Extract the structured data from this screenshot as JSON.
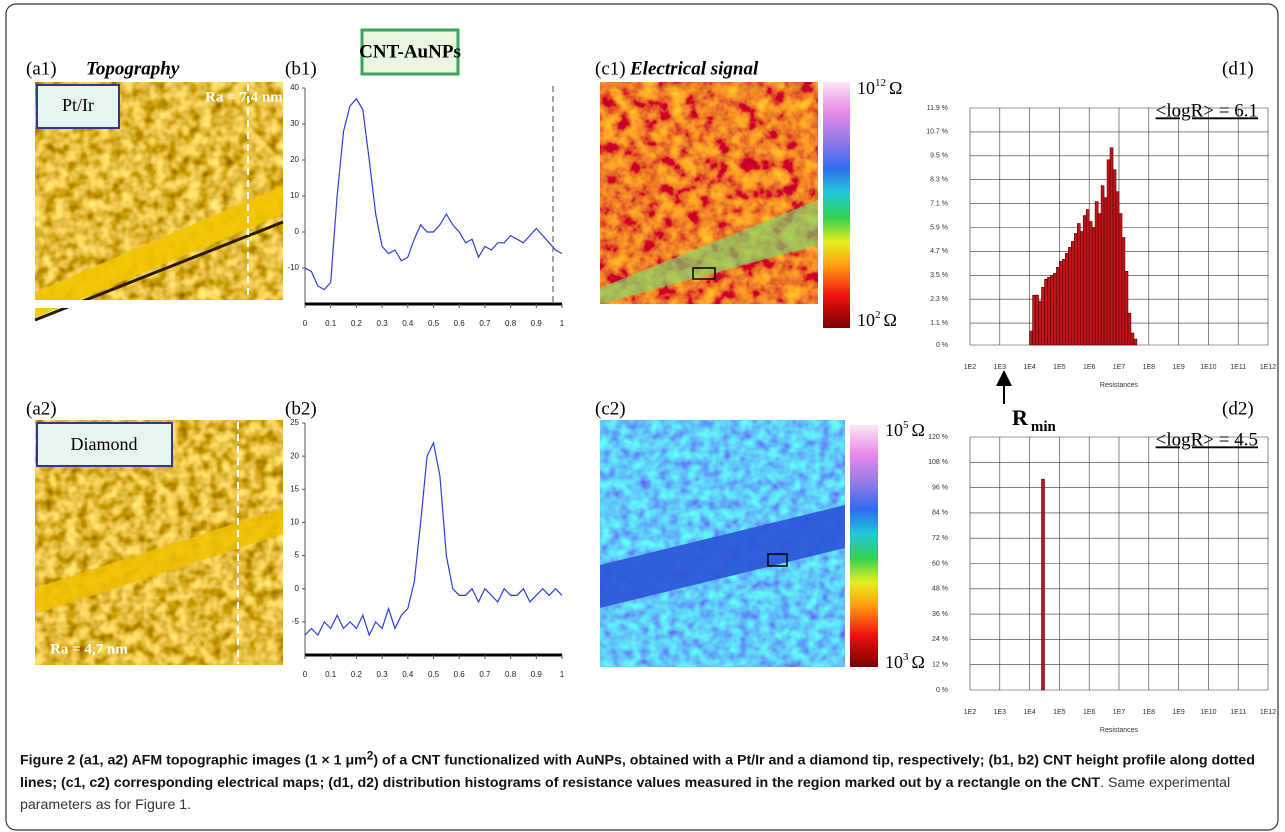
{
  "banner": "CNT-AuNPs",
  "panels": {
    "a1": {
      "label": "(a1)",
      "title": "Topography",
      "tip": "Pt/Ir",
      "ra": "Ra = 7,4 nm"
    },
    "b1": {
      "label": "(b1)"
    },
    "c1": {
      "label": "(c1)",
      "title": "Electrical signal",
      "scale_top": {
        "base": "10",
        "exp": "12",
        "unit": "Ω"
      },
      "scale_bottom": {
        "base": "10",
        "exp": "2",
        "unit": "Ω"
      }
    },
    "d1": {
      "label": "(d1)"
    },
    "a2": {
      "label": "(a2)",
      "tip": "Diamond",
      "ra": "Ra = 4,7 nm"
    },
    "b2": {
      "label": "(b2)"
    },
    "c2": {
      "label": "(c2)",
      "scale_top": {
        "base": "10",
        "exp": "5",
        "unit": "Ω"
      },
      "scale_bottom": {
        "base": "10",
        "exp": "3",
        "unit": "Ω"
      }
    },
    "d2": {
      "label": "(d2)"
    }
  },
  "rmin": {
    "main": "R",
    "sub": "min"
  },
  "chart_data": [
    {
      "type": "line",
      "color": "#2b3fd6",
      "x": [
        0,
        0.025,
        0.05,
        0.075,
        0.1,
        0.125,
        0.15,
        0.175,
        0.2,
        0.225,
        0.25,
        0.275,
        0.3,
        0.325,
        0.35,
        0.375,
        0.4,
        0.425,
        0.45,
        0.475,
        0.5,
        0.525,
        0.55,
        0.575,
        0.6,
        0.625,
        0.65,
        0.675,
        0.7,
        0.725,
        0.75,
        0.775,
        0.8,
        0.825,
        0.85,
        0.875,
        0.9,
        0.925,
        0.95,
        0.975,
        1
      ],
      "values": [
        -10,
        -11,
        -15,
        -16,
        -14,
        10,
        28,
        35,
        37,
        34,
        20,
        5,
        -4,
        -6,
        -5,
        -8,
        -7,
        -2,
        2,
        0,
        0,
        2,
        5,
        2,
        0,
        -3,
        -2,
        -7,
        -4,
        -5,
        -3,
        -3,
        -1,
        -2,
        -3,
        -1,
        1,
        -1,
        -3,
        -5,
        -6
      ],
      "xlim": [
        0,
        1
      ],
      "xticks": [
        0,
        0.1,
        0.2,
        0.3,
        0.4,
        0.5,
        0.6,
        0.7,
        0.8,
        0.9,
        1
      ],
      "ylim": [
        -20,
        40
      ],
      "yticks": [
        -10,
        0,
        10,
        20,
        30,
        40
      ]
    },
    {
      "type": "line",
      "color": "#2b3fd6",
      "x": [
        0,
        0.025,
        0.05,
        0.075,
        0.1,
        0.125,
        0.15,
        0.175,
        0.2,
        0.225,
        0.25,
        0.275,
        0.3,
        0.325,
        0.35,
        0.375,
        0.4,
        0.425,
        0.45,
        0.475,
        0.5,
        0.525,
        0.55,
        0.575,
        0.6,
        0.625,
        0.65,
        0.675,
        0.7,
        0.725,
        0.75,
        0.775,
        0.8,
        0.825,
        0.85,
        0.875,
        0.9,
        0.925,
        0.95,
        0.975,
        1
      ],
      "values": [
        -7,
        -6,
        -7,
        -5,
        -6,
        -4,
        -6,
        -5,
        -6,
        -4,
        -7,
        -5,
        -6,
        -3,
        -6,
        -4,
        -3,
        1,
        10,
        20,
        22,
        17,
        5,
        0,
        -1,
        -1,
        0,
        -2,
        0,
        -1,
        -2,
        0,
        -1,
        -1,
        0,
        -2,
        -1,
        0,
        -1,
        0,
        -1
      ],
      "xlim": [
        0,
        1
      ],
      "xticks": [
        0,
        0.1,
        0.2,
        0.3,
        0.4,
        0.5,
        0.6,
        0.7,
        0.8,
        0.9,
        1
      ],
      "ylim": [
        -10,
        25
      ],
      "yticks": [
        -5,
        0,
        5,
        10,
        15,
        20,
        25
      ]
    },
    {
      "type": "histogram",
      "color": "#c0161b",
      "log_x": true,
      "grid": true,
      "x_label": "Resistances",
      "annotation": "<logR> = 6.1",
      "bins": [
        10000,
        12600,
        15800,
        20000,
        25100,
        31600,
        39800,
        50100,
        63100,
        79400,
        100000,
        126000,
        158000,
        200000,
        251000,
        316000,
        398000,
        501000,
        631000,
        794000,
        1000000,
        1260000,
        1580000,
        2000000,
        2510000,
        3160000,
        3980000,
        5010000,
        6310000,
        7940000,
        10000000,
        12600000,
        15800000,
        20000000,
        25100000,
        31600000,
        39800000
      ],
      "values": [
        0.7,
        2.5,
        2.5,
        2.2,
        2.9,
        3.3,
        3.4,
        3.5,
        3.6,
        3.9,
        4.2,
        4.3,
        4.6,
        4.9,
        5.2,
        5.6,
        6.1,
        5.7,
        6.5,
        6.8,
        6.2,
        5.9,
        7.2,
        6.6,
        8.0,
        7.4,
        9.3,
        9.9,
        8.8,
        7.7,
        6.6,
        5.4,
        3.7,
        1.6,
        0.6,
        0.3
      ],
      "xlim": [
        100,
        1000000000000
      ],
      "xticks": [
        {
          "value": 100,
          "label": "1E2"
        },
        {
          "value": 1000,
          "label": "1E3"
        },
        {
          "value": 10000,
          "label": "1E4"
        },
        {
          "value": 100000,
          "label": "1E5"
        },
        {
          "value": 1000000,
          "label": "1E6"
        },
        {
          "value": 10000000,
          "label": "1E7"
        },
        {
          "value": 100000000,
          "label": "1E8"
        },
        {
          "value": 1000000000,
          "label": "1E9"
        },
        {
          "value": 10000000000,
          "label": "1E10"
        },
        {
          "value": 100000000000,
          "label": "1E11"
        },
        {
          "value": 1000000000000,
          "label": "1E12"
        }
      ],
      "ylim": [
        0,
        11.9
      ],
      "yticks": [
        {
          "value": 0,
          "label": "0 %"
        },
        {
          "value": 1.1,
          "label": "1.1 %"
        },
        {
          "value": 2.3,
          "label": "2.3 %"
        },
        {
          "value": 3.5,
          "label": "3.5 %"
        },
        {
          "value": 4.7,
          "label": "4.7 %"
        },
        {
          "value": 5.9,
          "label": "5.9 %"
        },
        {
          "value": 7.1,
          "label": "7.1 %"
        },
        {
          "value": 8.3,
          "label": "8.3 %"
        },
        {
          "value": 9.5,
          "label": "9.5 %"
        },
        {
          "value": 10.7,
          "label": "10.7 %"
        },
        {
          "value": 11.9,
          "label": "11.9 %"
        }
      ]
    },
    {
      "type": "histogram",
      "color": "#c0161b",
      "log_x": true,
      "grid": true,
      "x_label": "Resistances",
      "annotation": "<logR> = 4.5",
      "bins": [
        25100,
        31600
      ],
      "values": [
        100
      ],
      "xlim": [
        100,
        1000000000000
      ],
      "xticks": [
        {
          "value": 100,
          "label": "1E2"
        },
        {
          "value": 1000,
          "label": "1E3"
        },
        {
          "value": 10000,
          "label": "1E4"
        },
        {
          "value": 100000,
          "label": "1E5"
        },
        {
          "value": 1000000,
          "label": "1E6"
        },
        {
          "value": 10000000,
          "label": "1E7"
        },
        {
          "value": 100000000,
          "label": "1E8"
        },
        {
          "value": 1000000000,
          "label": "1E9"
        },
        {
          "value": 10000000000,
          "label": "1E10"
        },
        {
          "value": 100000000000,
          "label": "1E11"
        },
        {
          "value": 1000000000000,
          "label": "1E12"
        }
      ],
      "ylim": [
        0,
        120
      ],
      "yticks": [
        {
          "value": 0,
          "label": "0 %"
        },
        {
          "value": 12,
          "label": "12 %"
        },
        {
          "value": 24,
          "label": "24 %"
        },
        {
          "value": 36,
          "label": "36 %"
        },
        {
          "value": 48,
          "label": "48 %"
        },
        {
          "value": 60,
          "label": "60 %"
        },
        {
          "value": 72,
          "label": "72 %"
        },
        {
          "value": 84,
          "label": "84 %"
        },
        {
          "value": 96,
          "label": "96 %"
        },
        {
          "value": 108,
          "label": "108 %"
        },
        {
          "value": 120,
          "label": "120 %"
        }
      ]
    }
  ],
  "caption": {
    "label": "Figure 2",
    "bold_a": " (a1, a2) AFM topographic images (1 × 1 μm",
    "sup": "2",
    "bold_b": ") of a CNT functionalized with AuNPs, obtained with a Pt/Ir and a diamond tip, respectively; (b1, b2) CNT height profile along dotted lines; (c1, c2) corresponding electrical maps; (d1, d2) distribution histograms of resistance values measured in the region marked out by a rectangle on the CNT",
    "rest": ". Same experimental parameters as for Figure 1."
  }
}
